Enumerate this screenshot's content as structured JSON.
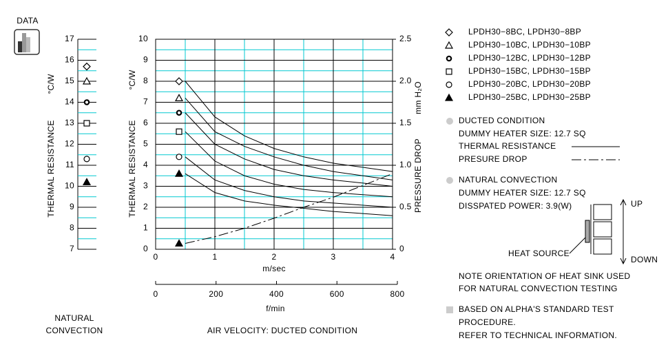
{
  "icon_label": "DATA",
  "chart_data": [
    {
      "type": "strip",
      "ylabel": "THERMAL RESISTANCE",
      "yunit": "°C/W",
      "xlabel_lines": [
        "NATURAL",
        "CONVECTION"
      ],
      "ylim": [
        7,
        17
      ],
      "yticks": [
        7,
        8,
        9,
        10,
        11,
        12,
        13,
        14,
        15,
        16,
        17
      ],
      "minor_yticks": [
        7.5,
        8.5,
        9.5,
        10.5,
        11.5,
        12.5,
        13.5,
        14.5,
        15.5,
        16.5
      ],
      "series": [
        {
          "marker": "diamond",
          "values": [
            15.7
          ]
        },
        {
          "marker": "triangle",
          "values": [
            15.0
          ]
        },
        {
          "marker": "circle-dot",
          "values": [
            14.0
          ]
        },
        {
          "marker": "square",
          "values": [
            13.0
          ]
        },
        {
          "marker": "circle",
          "values": [
            11.3
          ]
        },
        {
          "marker": "triangle-filled",
          "values": [
            10.2
          ]
        }
      ]
    },
    {
      "type": "line",
      "xlabel": "m/sec",
      "xlim": [
        0,
        4
      ],
      "xticks": [
        0,
        1,
        2,
        3,
        4
      ],
      "minor_xticks": [
        0.5,
        1.5,
        2.5,
        3.5
      ],
      "x2label": "f/min",
      "x2lim": [
        0,
        800
      ],
      "x2ticks": [
        0,
        200,
        400,
        600,
        800
      ],
      "ylabel": "THERMAL RESISTANCE",
      "yunit": "°C/W",
      "ylim": [
        0,
        10
      ],
      "yticks": [
        0,
        1,
        2,
        3,
        4,
        5,
        6,
        7,
        8,
        9,
        10
      ],
      "minor_yticks": [
        0.5,
        1.5,
        2.5,
        3.5,
        4.5,
        5.5,
        6.5,
        7.5,
        8.5,
        9.5
      ],
      "y2label": "PRESSURE DROP",
      "y2unit": "mm H₂O",
      "y2lim": [
        0,
        2.5
      ],
      "y2ticks": [
        0,
        0.5,
        {
          "value": 1,
          "label": "1.0"
        },
        1.5,
        {
          "value": 2,
          "label": "2.0"
        },
        2.5
      ],
      "caption": "AIR VELOCITY:  DUCTED CONDITION",
      "x": [
        0.5,
        1,
        1.5,
        2,
        2.5,
        3,
        3.5,
        4
      ],
      "series": [
        {
          "marker": "diamond",
          "values": [
            8.0,
            6.3,
            5.4,
            4.8,
            4.4,
            4.1,
            3.9,
            3.7
          ]
        },
        {
          "marker": "triangle",
          "values": [
            7.2,
            5.6,
            4.9,
            4.4,
            4.0,
            3.7,
            3.5,
            3.3
          ]
        },
        {
          "marker": "circle-dot",
          "values": [
            6.5,
            5.0,
            4.3,
            3.8,
            3.5,
            3.3,
            3.15,
            3.0
          ]
        },
        {
          "marker": "square",
          "values": [
            5.6,
            4.2,
            3.5,
            3.1,
            2.85,
            2.7,
            2.6,
            2.5
          ]
        },
        {
          "marker": "circle",
          "values": [
            4.4,
            3.3,
            2.8,
            2.5,
            2.3,
            2.2,
            2.1,
            2.0
          ]
        },
        {
          "marker": "triangle-filled",
          "values": [
            3.6,
            2.7,
            2.3,
            2.1,
            1.95,
            1.8,
            1.7,
            1.6
          ]
        },
        {
          "marker": "triangle-filled",
          "axis": "y2",
          "dash": true,
          "values": [
            0.07,
            0.15,
            0.25,
            0.37,
            0.5,
            0.62,
            0.76,
            0.9
          ]
        }
      ]
    }
  ],
  "legend": [
    {
      "marker": "diamond",
      "label": "LPDH30−8BC,  LPDH30−8BP"
    },
    {
      "marker": "triangle",
      "label": "LPDH30−10BC,  LPDH30−10BP"
    },
    {
      "marker": "circle-dot",
      "label": "LPDH30−12BC,  LPDH30−12BP"
    },
    {
      "marker": "square",
      "label": "LPDH30−15BC,  LPDH30−15BP"
    },
    {
      "marker": "circle",
      "label": "LPDH30−20BC,  LPDH30−20BP"
    },
    {
      "marker": "triangle-filled",
      "label": "LPDH30−25BC,  LPDH30−25BP"
    }
  ],
  "notes": {
    "ducted": {
      "title": "DUCTED CONDITION",
      "heater": "DUMMY HEATER SIZE: 12.7 SQ",
      "thermal": "THERMAL RESISTANCE",
      "pressure": "PRESURE DROP"
    },
    "natural": {
      "title": "NATURAL CONVECTION",
      "heater": "DUMMY HEATER SIZE: 12.7 SQ",
      "power": "DISSPATED POWER: 3.9(W)",
      "up": "UP",
      "down": "DOWN",
      "heat_source": "HEAT SOURCE",
      "note_lines": [
        "NOTE ORIENTATION OF HEAT SINK USED",
        "FOR NATURAL CONVECTION TESTING"
      ]
    },
    "standard_lines": [
      "BASED ON ALPHA'S STANDARD TEST",
      "PROCEDURE.",
      "REFER TO TECHNICAL INFORMATION."
    ]
  }
}
